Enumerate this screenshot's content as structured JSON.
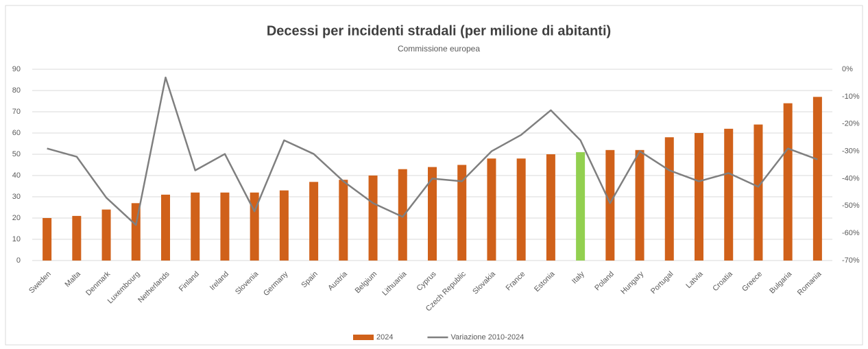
{
  "chart_data": {
    "type": "combo",
    "title": "Decessi per incidenti stradali (per milione di abitanti)",
    "subtitle": "Commissione europea",
    "categories": [
      "Sweden",
      "Malta",
      "Denmark",
      "Luxembourg",
      "Netherlands",
      "Finland",
      "Ireland",
      "Slovenia",
      "Germany",
      "Spain",
      "Austria",
      "Belgium",
      "Lithuania",
      "Cyprus",
      "Czech Republic",
      "Slovakia",
      "France",
      "Estonia",
      "Italy",
      "Poland",
      "Hungary",
      "Portugal",
      "Latvia",
      "Croatia",
      "Greece",
      "Bulgaria",
      "Romania"
    ],
    "series": [
      {
        "name": "2024",
        "type": "bar",
        "color": "#d0611a",
        "colors": [
          "#d0611a",
          "#d0611a",
          "#d0611a",
          "#d0611a",
          "#d0611a",
          "#d0611a",
          "#d0611a",
          "#d0611a",
          "#d0611a",
          "#d0611a",
          "#d0611a",
          "#d0611a",
          "#d0611a",
          "#d0611a",
          "#d0611a",
          "#d0611a",
          "#d0611a",
          "#d0611a",
          "#92d050",
          "#d0611a",
          "#d0611a",
          "#d0611a",
          "#d0611a",
          "#d0611a",
          "#d0611a",
          "#d0611a",
          "#d0611a"
        ],
        "values": [
          20,
          21,
          24,
          27,
          31,
          32,
          32,
          32,
          33,
          37,
          38,
          40,
          43,
          44,
          45,
          48,
          48,
          50,
          51,
          52,
          52,
          58,
          60,
          62,
          64,
          74,
          77
        ]
      },
      {
        "name": "Variazione 2010-2024",
        "type": "line",
        "axis": "y2",
        "color": "#7f7f7f",
        "values": [
          -29,
          -32,
          -47,
          -57,
          -3,
          -37,
          -31,
          -52,
          -26,
          -31,
          -41,
          -49,
          -54,
          -40,
          -41,
          -30,
          -24,
          -15,
          -26,
          -49,
          -30,
          -37,
          -41,
          -38,
          -43,
          -29,
          -33
        ]
      }
    ],
    "ylim": [
      0,
      90
    ],
    "yticks": [
      0,
      10,
      20,
      30,
      40,
      50,
      60,
      70,
      80,
      90
    ],
    "y2lim": [
      -70,
      0
    ],
    "y2ticks": [
      {
        "value": 0,
        "label": "0%"
      },
      {
        "value": -10,
        "label": "-10%"
      },
      {
        "value": -20,
        "label": "-20%"
      },
      {
        "value": -30,
        "label": "-30%"
      },
      {
        "value": -40,
        "label": "-40%"
      },
      {
        "value": -50,
        "label": "-50%"
      },
      {
        "value": -60,
        "label": "-60%"
      },
      {
        "value": -70,
        "label": "-70%"
      }
    ],
    "grid": true,
    "legend": "bottom"
  }
}
